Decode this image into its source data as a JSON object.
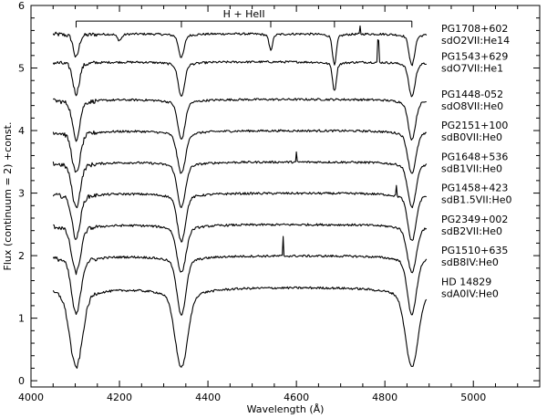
{
  "chart_data": {
    "type": "line",
    "xlabel": "Wavelength (Å)",
    "ylabel": "Flux (continuum = 2) +const.",
    "xlim": [
      4000,
      5150
    ],
    "ylim": [
      -0.1,
      6
    ],
    "x_ticks": [
      4000,
      4200,
      4400,
      4600,
      4800,
      5000
    ],
    "y_ticks": [
      0,
      1,
      2,
      3,
      4,
      5,
      6
    ],
    "bracket": {
      "label": "H + HeII",
      "x_start": 4102,
      "x_end": 4861,
      "y": 5.75,
      "line_marks": [
        4102,
        4340,
        4542,
        4686,
        4861
      ]
    },
    "series": [
      {
        "name": "PG1708+602",
        "class": "sdO2VII:He14",
        "continuum": 5.55,
        "x_start": 4050,
        "x_end": 4895,
        "lines": [
          {
            "x": 4102,
            "depth": 0.45,
            "width": 6
          },
          {
            "x": 4200,
            "depth": 0.12,
            "width": 5
          },
          {
            "x": 4340,
            "depth": 0.45,
            "width": 6
          },
          {
            "x": 4542,
            "depth": 0.3,
            "width": 4
          },
          {
            "x": 4686,
            "depth": 0.6,
            "width": 4
          },
          {
            "x": 4861,
            "depth": 0.6,
            "width": 6
          }
        ],
        "spikes": [
          {
            "x": 4744,
            "h": 0.12
          }
        ]
      },
      {
        "name": "PG1543+629",
        "class": "sdO7VII:He1",
        "continuum": 5.1,
        "x_start": 4050,
        "x_end": 4895,
        "lines": [
          {
            "x": 4102,
            "depth": 0.6,
            "width": 7
          },
          {
            "x": 4340,
            "depth": 0.65,
            "width": 7
          },
          {
            "x": 4686,
            "depth": 0.55,
            "width": 4
          },
          {
            "x": 4861,
            "depth": 0.65,
            "width": 7
          }
        ],
        "spikes": [
          {
            "x": 4785,
            "h": 0.35
          }
        ]
      },
      {
        "name": "PG1448-052",
        "class": "sdO8VII:He0",
        "continuum": 4.5,
        "x_start": 4050,
        "x_end": 4895,
        "lines": [
          {
            "x": 4102,
            "depth": 0.75,
            "width": 8
          },
          {
            "x": 4340,
            "depth": 0.75,
            "width": 8
          },
          {
            "x": 4861,
            "depth": 0.75,
            "width": 8
          }
        ],
        "spikes": []
      },
      {
        "name": "PG2151+100",
        "class": "sdB0VII:He0",
        "continuum": 4.0,
        "x_start": 4050,
        "x_end": 4895,
        "lines": [
          {
            "x": 4102,
            "depth": 0.8,
            "width": 9
          },
          {
            "x": 4340,
            "depth": 0.8,
            "width": 9
          },
          {
            "x": 4861,
            "depth": 0.8,
            "width": 9
          }
        ],
        "spikes": []
      },
      {
        "name": "PG1648+536",
        "class": "sdB1VII:He0",
        "continuum": 3.5,
        "x_start": 4050,
        "x_end": 4895,
        "lines": [
          {
            "x": 4102,
            "depth": 0.85,
            "width": 9
          },
          {
            "x": 4340,
            "depth": 0.85,
            "width": 9
          },
          {
            "x": 4861,
            "depth": 0.85,
            "width": 9
          }
        ],
        "spikes": [
          {
            "x": 4600,
            "h": 0.15
          }
        ]
      },
      {
        "name": "PG1458+423",
        "class": "sdB1.5VII:He0",
        "continuum": 3.0,
        "x_start": 4050,
        "x_end": 4895,
        "lines": [
          {
            "x": 4102,
            "depth": 0.85,
            "width": 9
          },
          {
            "x": 4340,
            "depth": 0.9,
            "width": 9
          },
          {
            "x": 4861,
            "depth": 0.9,
            "width": 9
          }
        ],
        "spikes": [
          {
            "x": 4826,
            "h": 0.18
          }
        ]
      },
      {
        "name": "PG2349+002",
        "class": "sdB2VII:He0",
        "continuum": 2.5,
        "x_start": 4050,
        "x_end": 4895,
        "lines": [
          {
            "x": 4102,
            "depth": 0.9,
            "width": 10
          },
          {
            "x": 4340,
            "depth": 0.9,
            "width": 10
          },
          {
            "x": 4861,
            "depth": 0.9,
            "width": 10
          }
        ],
        "spikes": []
      },
      {
        "name": "PG1510+635",
        "class": "sdB8IV:He0",
        "continuum": 2.0,
        "x_start": 4050,
        "x_end": 4895,
        "lines": [
          {
            "x": 4102,
            "depth": 1.1,
            "width": 10
          },
          {
            "x": 4340,
            "depth": 1.1,
            "width": 10
          },
          {
            "x": 4861,
            "depth": 1.1,
            "width": 10
          }
        ],
        "spikes": [
          {
            "x": 4570,
            "h": 0.3
          }
        ]
      },
      {
        "name": "HD 14829",
        "class": "sdA0IV:He0",
        "continuum": 1.5,
        "x_start": 4050,
        "x_end": 4895,
        "lines": [
          {
            "x": 4102,
            "depth": 1.5,
            "width": 14
          },
          {
            "x": 4340,
            "depth": 1.5,
            "width": 14
          },
          {
            "x": 4861,
            "depth": 1.5,
            "width": 14
          }
        ],
        "spikes": []
      }
    ]
  }
}
